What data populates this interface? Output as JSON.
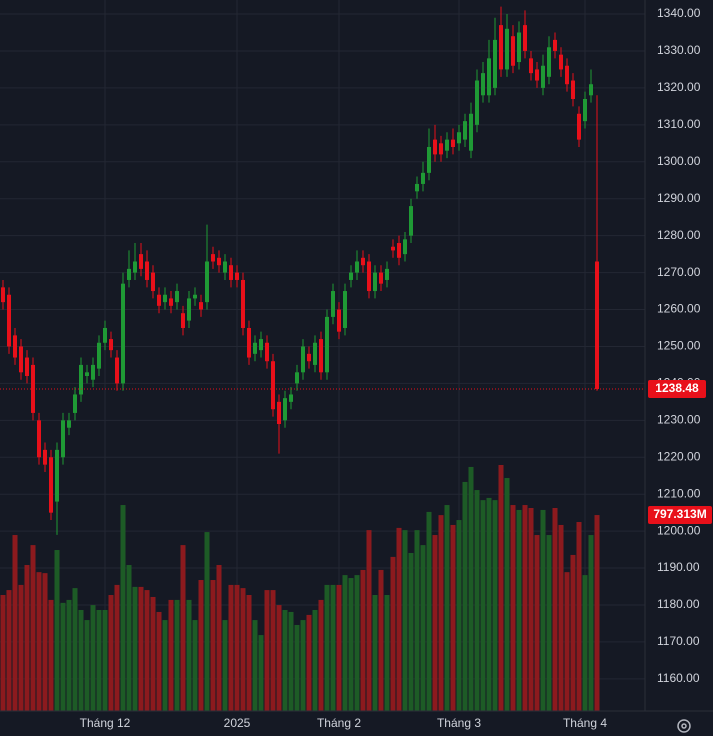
{
  "chart_data": {
    "type": "candlestick",
    "categories": [
      null,
      null,
      null,
      null,
      null,
      null,
      null,
      null,
      null,
      null,
      null,
      null,
      null,
      null,
      null,
      null,
      null,
      "Tháng 12",
      null,
      null,
      null,
      null,
      null,
      null,
      null,
      null,
      null,
      null,
      null,
      null,
      null,
      null,
      null,
      null,
      null,
      null,
      null,
      null,
      null,
      "2025",
      null,
      null,
      null,
      null,
      null,
      null,
      null,
      null,
      null,
      null,
      null,
      null,
      null,
      null,
      null,
      null,
      "Tháng 2",
      null,
      null,
      null,
      null,
      null,
      null,
      null,
      null,
      null,
      null,
      null,
      null,
      null,
      null,
      null,
      null,
      null,
      null,
      null,
      "Tháng 3",
      null,
      null,
      null,
      null,
      null,
      null,
      null,
      null,
      null,
      null,
      null,
      null,
      null,
      null,
      null,
      null,
      null,
      null,
      null,
      null,
      "Tháng 4",
      null,
      null
    ],
    "open": [
      1266,
      1264,
      1253,
      1250,
      1247,
      1245,
      1230,
      1222,
      1220,
      1208,
      1220,
      1228,
      1232,
      1237,
      1242,
      1241,
      1244,
      1251,
      1252,
      1247,
      1240,
      1268,
      1270,
      1275,
      1273,
      1270,
      1264,
      1262,
      1263,
      1262,
      1259,
      1257,
      1263,
      1262,
      1262,
      1275,
      1274,
      1270,
      1272,
      1270,
      1268,
      1255,
      1248,
      1249,
      1251,
      1246,
      1235,
      1230,
      1235,
      1240,
      1243,
      1248,
      1245,
      1252,
      1243,
      1258,
      1260,
      1255,
      1268,
      1270,
      1274,
      1273,
      1265,
      1270,
      1268,
      1277,
      1278,
      1275,
      1280,
      1292,
      1294,
      1297,
      1306,
      1305,
      1303,
      1306,
      1305,
      1306,
      1303,
      1310,
      1318,
      1318,
      1320,
      1337,
      1325,
      1334,
      1327,
      1337,
      1328,
      1325,
      1320,
      1323,
      1333,
      1329,
      1326,
      1322,
      1313,
      1311,
      1318,
      1273
    ],
    "high": [
      1268,
      1266,
      1255,
      1252,
      1249,
      1247,
      1232,
      1224,
      1222,
      1224,
      1232,
      1232,
      1239,
      1247,
      1245,
      1247,
      1253,
      1257,
      1254,
      1249,
      1270,
      1276,
      1278,
      1278,
      1276,
      1272,
      1266,
      1266,
      1265,
      1267,
      1261,
      1265,
      1266,
      1264,
      1283,
      1277,
      1276,
      1275,
      1274,
      1272,
      1270,
      1257,
      1253,
      1254,
      1253,
      1248,
      1237,
      1238,
      1239,
      1245,
      1252,
      1250,
      1253,
      1254,
      1260,
      1267,
      1262,
      1267,
      1272,
      1276,
      1276,
      1275,
      1272,
      1272,
      1273,
      1279,
      1280,
      1281,
      1290,
      1296,
      1300,
      1309,
      1310,
      1307,
      1308,
      1309,
      1310,
      1313,
      1316,
      1325,
      1327,
      1333,
      1339,
      1342,
      1340,
      1337,
      1338,
      1341,
      1330,
      1327,
      1329,
      1334,
      1335,
      1331,
      1328,
      1324,
      1315,
      1319,
      1325,
      1318
    ],
    "low": [
      1260,
      1248,
      1245,
      1241,
      1240,
      1230,
      1218,
      1216,
      1203,
      1199,
      1218,
      1226,
      1230,
      1235,
      1240,
      1239,
      1242,
      1249,
      1247,
      1238,
      1238,
      1266,
      1268,
      1269,
      1266,
      1263,
      1259,
      1260,
      1259,
      1260,
      1253,
      1255,
      1261,
      1258,
      1260,
      1271,
      1270,
      1268,
      1266,
      1266,
      1253,
      1245,
      1246,
      1247,
      1244,
      1231,
      1221,
      1228,
      1233,
      1238,
      1241,
      1244,
      1243,
      1241,
      1241,
      1256,
      1252,
      1253,
      1266,
      1268,
      1270,
      1263,
      1263,
      1265,
      1266,
      1274,
      1272,
      1273,
      1278,
      1290,
      1292,
      1295,
      1300,
      1300,
      1301,
      1302,
      1303,
      1304,
      1301,
      1308,
      1316,
      1316,
      1318,
      1323,
      1323,
      1324,
      1325,
      1328,
      1322,
      1320,
      1318,
      1321,
      1328,
      1323,
      1319,
      1315,
      1304,
      1309,
      1316,
      1238
    ],
    "close": [
      1262,
      1250,
      1247,
      1243,
      1242,
      1232,
      1220,
      1218,
      1205,
      1222,
      1230,
      1230,
      1237,
      1245,
      1243,
      1245,
      1251,
      1255,
      1249,
      1240,
      1267,
      1271,
      1273,
      1271,
      1268,
      1265,
      1261,
      1264,
      1261,
      1265,
      1255,
      1263,
      1264,
      1260,
      1273,
      1273,
      1272,
      1273,
      1268,
      1268,
      1255,
      1247,
      1251,
      1252,
      1246,
      1233,
      1229,
      1236,
      1237,
      1243,
      1250,
      1246,
      1251,
      1243,
      1258,
      1265,
      1254,
      1265,
      1270,
      1273,
      1272,
      1265,
      1270,
      1267,
      1271,
      1276,
      1274,
      1279,
      1288,
      1294,
      1297,
      1304,
      1302,
      1302,
      1306,
      1304,
      1308,
      1311,
      1313,
      1322,
      1324,
      1328,
      1333,
      1325,
      1336,
      1326,
      1335,
      1330,
      1324,
      1322,
      1326,
      1331,
      1330,
      1325,
      1321,
      1317,
      1306,
      1317,
      1321,
      1238.48
    ],
    "up_color": "#1f9a35",
    "down_color": "#e8101a",
    "volume": {
      "values": [
        472,
        492,
        716,
        513,
        594,
        675,
        565,
        561,
        452,
        655,
        440,
        452,
        500,
        411,
        370,
        431,
        411,
        411,
        472,
        513,
        838,
        594,
        505,
        505,
        492,
        464,
        403,
        370,
        452,
        452,
        675,
        452,
        370,
        533,
        728,
        533,
        594,
        370,
        513,
        513,
        500,
        472,
        370,
        309,
        492,
        492,
        431,
        411,
        403,
        350,
        370,
        391,
        411,
        452,
        513,
        513,
        513,
        553,
        541,
        553,
        574,
        736,
        472,
        574,
        472,
        627,
        745,
        736,
        643,
        736,
        675,
        810,
        716,
        797,
        838,
        757,
        777,
        932,
        993,
        899,
        858,
        867,
        858,
        1001,
        948,
        838,
        818,
        838,
        826,
        716,
        818,
        716,
        826,
        757,
        565,
        635,
        769,
        553,
        716,
        797.313
      ],
      "value_labels": [
        null,
        null,
        null,
        null,
        null,
        null,
        null,
        null,
        null,
        null,
        null,
        null,
        null,
        null,
        null,
        null,
        null,
        null,
        null,
        null,
        null,
        null,
        null,
        null,
        null,
        null,
        null,
        null,
        null,
        null,
        null,
        null,
        null,
        null,
        null,
        null,
        null,
        null,
        null,
        null,
        null,
        null,
        null,
        null,
        null,
        null,
        null,
        null,
        null,
        null,
        null,
        null,
        null,
        null,
        null,
        null,
        null,
        null,
        null,
        null,
        null,
        null,
        null,
        null,
        null,
        null,
        null,
        null,
        null,
        null,
        null,
        null,
        null,
        null,
        null,
        null,
        null,
        null,
        null,
        null,
        null,
        null,
        null,
        null,
        null,
        null,
        null,
        null,
        null,
        null,
        null,
        null,
        null,
        null,
        null,
        null,
        null,
        null,
        null,
        "797.313M"
      ],
      "up_color": "#1d5b26",
      "down_color": "#8c1a1e",
      "ylim": [
        0,
        2893
      ]
    },
    "ylim": [
      1151.3,
      1343.8
    ],
    "yticks": [
      {
        "value": 1160,
        "label": "1160.00"
      },
      {
        "value": 1170,
        "label": "1170.00"
      },
      {
        "value": 1180,
        "label": "1180.00"
      },
      {
        "value": 1190,
        "label": "1190.00"
      },
      {
        "value": 1200,
        "label": "1200.00"
      },
      {
        "value": 1210,
        "label": "1210.00"
      },
      {
        "value": 1220,
        "label": "1220.00"
      },
      {
        "value": 1230,
        "label": "1230.00"
      },
      {
        "value": 1240,
        "label": "1240.00"
      },
      {
        "value": 1250,
        "label": "1250.00"
      },
      {
        "value": 1260,
        "label": "1260.00"
      },
      {
        "value": 1270,
        "label": "1270.00"
      },
      {
        "value": 1280,
        "label": "1280.00"
      },
      {
        "value": 1290,
        "label": "1290.00"
      },
      {
        "value": 1300,
        "label": "1300.00"
      },
      {
        "value": 1310,
        "label": "1310.00"
      },
      {
        "value": 1320,
        "label": "1320.00"
      },
      {
        "value": 1330,
        "label": "1330.00"
      },
      {
        "value": 1340,
        "label": "1340.00"
      }
    ],
    "grid": true
  }
}
